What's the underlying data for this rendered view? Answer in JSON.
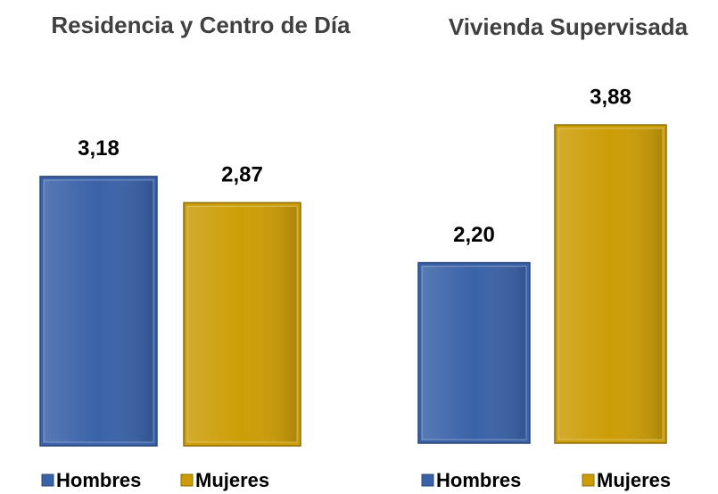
{
  "chart_data": [
    {
      "type": "bar",
      "title": "Residencia y Centro de Día",
      "categories": [
        "Hombres",
        "Mujeres"
      ],
      "values": [
        3.18,
        2.87
      ],
      "value_labels": [
        "3,18",
        "2,87"
      ],
      "colors": [
        "#3a62a8",
        "#cc9d06"
      ]
    },
    {
      "type": "bar",
      "title": "Vivienda Supervisada",
      "categories": [
        "Hombres",
        "Mujeres"
      ],
      "values": [
        2.2,
        3.88
      ],
      "value_labels": [
        "2,20",
        "3,88"
      ],
      "colors": [
        "#3a62a8",
        "#cc9d06"
      ]
    }
  ]
}
